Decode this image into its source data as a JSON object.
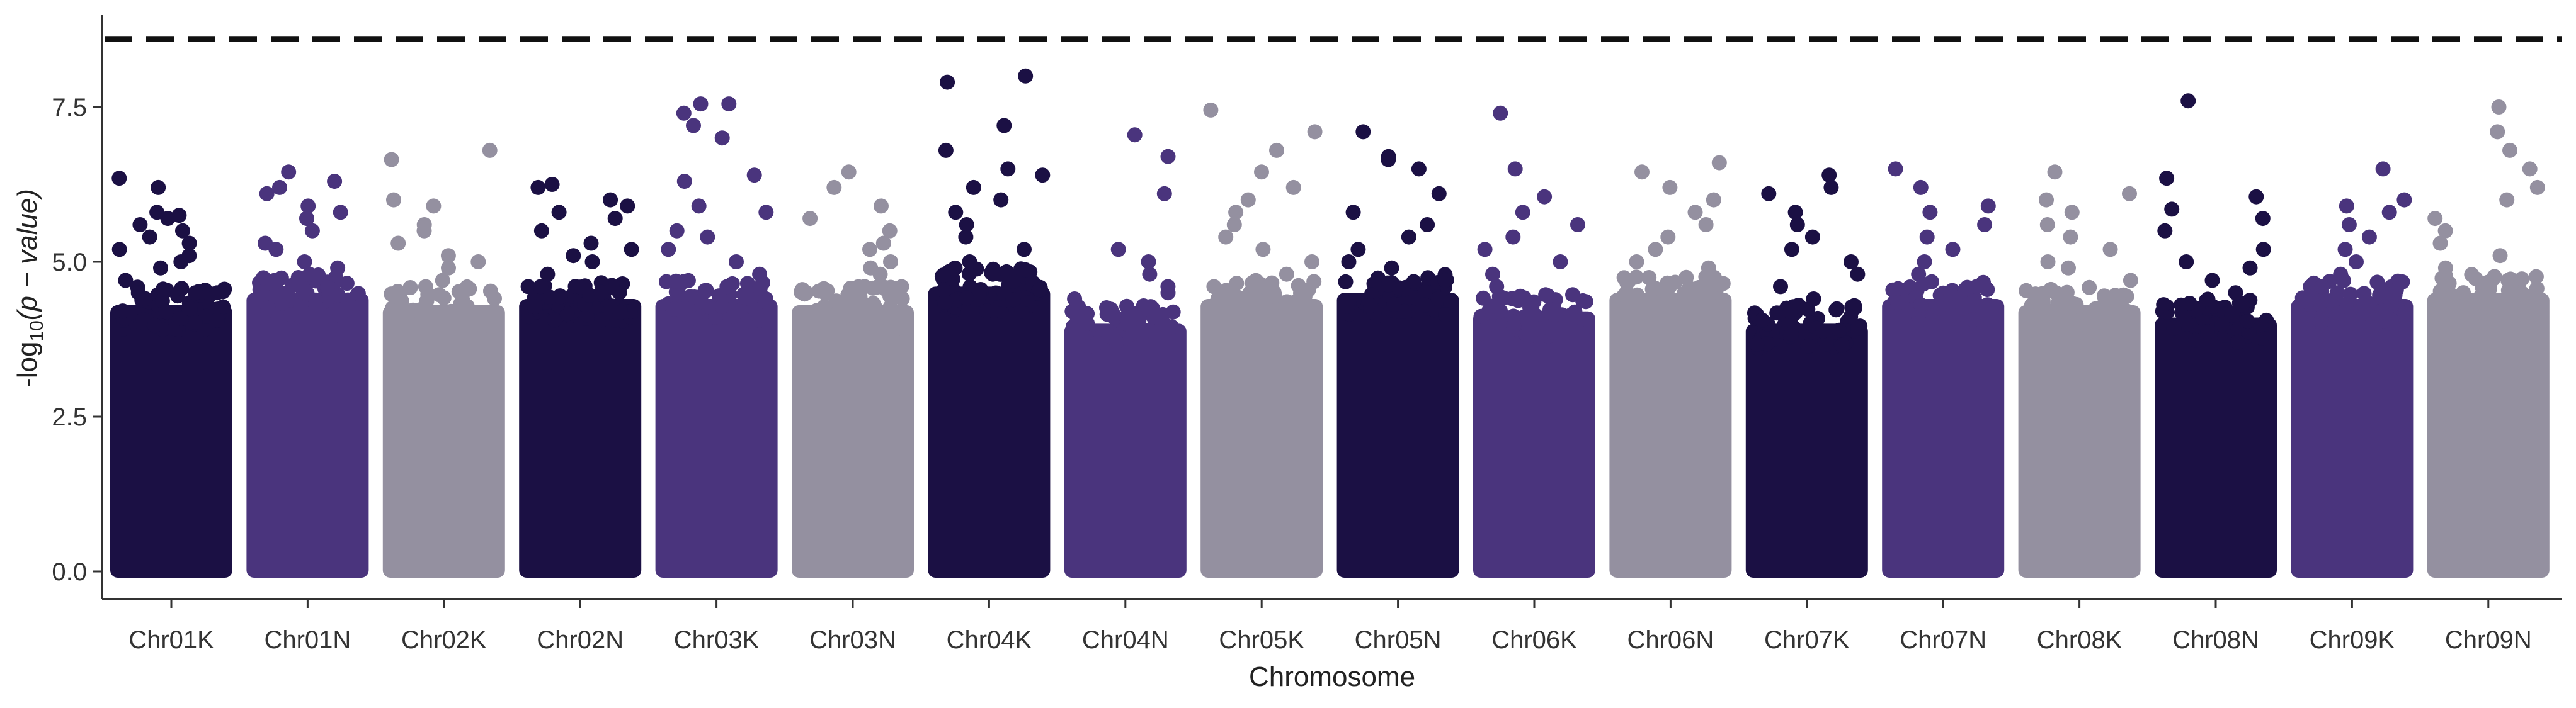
{
  "chart_data": {
    "type": "scatter",
    "subtype": "manhattan",
    "title": "",
    "xlabel": "Chromosome",
    "ylabel_parts": {
      "prefix": "-log",
      "sub": "10",
      "paren": "(p − value)"
    },
    "ylim": [
      0,
      8.8
    ],
    "yticks": [
      0.0,
      2.5,
      5.0,
      7.5
    ],
    "ytick_labels": [
      "0.0",
      "2.5",
      "5.0",
      "7.5"
    ],
    "threshold": 8.6,
    "threshold_style": "dashed",
    "grid": false,
    "legend": "none",
    "colors": [
      "#1b1044",
      "#4a347d",
      "#9490a0"
    ],
    "chromosomes": [
      {
        "label": "Chr01K",
        "color": 0,
        "body_max": 4.3,
        "hits": [
          4.5,
          4.7,
          4.9,
          5.0,
          5.1,
          5.2,
          5.3,
          5.4,
          5.5,
          5.6,
          5.7,
          5.75,
          5.8,
          6.2,
          6.35
        ]
      },
      {
        "label": "Chr01N",
        "color": 1,
        "body_max": 4.5,
        "hits": [
          4.7,
          4.9,
          5.0,
          5.2,
          5.3,
          5.5,
          5.7,
          5.8,
          5.9,
          6.1,
          6.2,
          6.3,
          6.45
        ]
      },
      {
        "label": "Chr02K",
        "color": 2,
        "body_max": 4.3,
        "hits": [
          4.5,
          4.7,
          4.9,
          5.0,
          5.1,
          5.3,
          5.5,
          5.6,
          5.9,
          6.0,
          6.65,
          6.8
        ]
      },
      {
        "label": "Chr02N",
        "color": 0,
        "body_max": 4.4,
        "hits": [
          4.6,
          4.8,
          5.0,
          5.1,
          5.2,
          5.3,
          5.5,
          5.7,
          5.8,
          5.9,
          6.0,
          6.2,
          6.25
        ]
      },
      {
        "label": "Chr03K",
        "color": 1,
        "body_max": 4.4,
        "hits": [
          4.6,
          4.8,
          5.0,
          5.2,
          5.4,
          5.5,
          5.8,
          5.9,
          6.3,
          6.4,
          7.0,
          7.2,
          7.4,
          7.55,
          7.55
        ]
      },
      {
        "label": "Chr03N",
        "color": 2,
        "body_max": 4.3,
        "hits": [
          4.5,
          4.6,
          4.8,
          4.9,
          5.0,
          5.2,
          5.3,
          5.5,
          5.7,
          5.9,
          6.2,
          6.45
        ]
      },
      {
        "label": "Chr04K",
        "color": 0,
        "body_max": 4.6,
        "hits": [
          4.8,
          5.0,
          5.2,
          5.4,
          5.6,
          5.8,
          6.0,
          6.2,
          6.4,
          6.5,
          6.8,
          7.2,
          7.9,
          8.0
        ]
      },
      {
        "label": "Chr04N",
        "color": 1,
        "body_max": 4.0,
        "hits": [
          4.2,
          4.4,
          4.5,
          4.6,
          4.8,
          5.0,
          5.2,
          6.1,
          6.7,
          7.05
        ]
      },
      {
        "label": "Chr05K",
        "color": 2,
        "body_max": 4.4,
        "hits": [
          4.6,
          4.8,
          5.0,
          5.2,
          5.4,
          5.6,
          5.8,
          6.0,
          6.2,
          6.45,
          6.8,
          7.1,
          7.45
        ]
      },
      {
        "label": "Chr05N",
        "color": 0,
        "body_max": 4.5,
        "hits": [
          4.7,
          4.9,
          5.0,
          5.2,
          5.4,
          5.6,
          5.8,
          6.1,
          6.5,
          6.65,
          6.7,
          7.1
        ]
      },
      {
        "label": "Chr06K",
        "color": 1,
        "body_max": 4.2,
        "hits": [
          4.4,
          4.6,
          4.8,
          5.0,
          5.2,
          5.4,
          5.6,
          5.8,
          6.05,
          6.5,
          7.4
        ]
      },
      {
        "label": "Chr06N",
        "color": 2,
        "body_max": 4.5,
        "hits": [
          4.7,
          4.9,
          5.0,
          5.2,
          5.4,
          5.6,
          5.8,
          6.0,
          6.2,
          6.45,
          6.6
        ]
      },
      {
        "label": "Chr07K",
        "color": 0,
        "body_max": 4.0,
        "hits": [
          4.2,
          4.4,
          4.6,
          4.8,
          5.0,
          5.2,
          5.4,
          5.6,
          5.8,
          6.1,
          6.2,
          6.4
        ]
      },
      {
        "label": "Chr07N",
        "color": 1,
        "body_max": 4.4,
        "hits": [
          4.6,
          4.8,
          5.0,
          5.2,
          5.4,
          5.6,
          5.8,
          5.9,
          6.2,
          6.5
        ]
      },
      {
        "label": "Chr08K",
        "color": 2,
        "body_max": 4.3,
        "hits": [
          4.5,
          4.7,
          4.9,
          5.0,
          5.2,
          5.4,
          5.6,
          5.8,
          6.0,
          6.1,
          6.45
        ]
      },
      {
        "label": "Chr08N",
        "color": 0,
        "body_max": 4.1,
        "hits": [
          4.3,
          4.5,
          4.7,
          4.9,
          5.0,
          5.2,
          5.5,
          5.7,
          5.85,
          6.05,
          6.35,
          7.6
        ]
      },
      {
        "label": "Chr09K",
        "color": 1,
        "body_max": 4.4,
        "hits": [
          4.6,
          4.8,
          5.0,
          5.2,
          5.4,
          5.6,
          5.8,
          5.9,
          6.0,
          6.5
        ]
      },
      {
        "label": "Chr09N",
        "color": 2,
        "body_max": 4.5,
        "hits": [
          4.7,
          4.9,
          5.1,
          5.3,
          5.5,
          5.7,
          6.0,
          6.2,
          6.5,
          6.8,
          7.1,
          7.5
        ]
      }
    ]
  }
}
